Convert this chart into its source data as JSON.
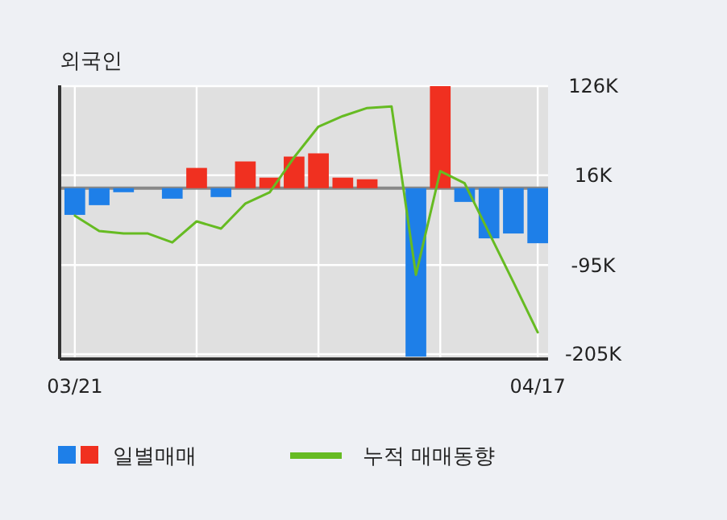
{
  "chart_data": {
    "type": "bar",
    "title": "외국인",
    "categories": [
      "03/21",
      null,
      null,
      null,
      null,
      null,
      null,
      null,
      null,
      null,
      null,
      null,
      null,
      null,
      null,
      null,
      null,
      null,
      null,
      "04/17"
    ],
    "series": [
      {
        "name": "일별매매",
        "colors": [
          "#1e7fe8",
          "#1e7fe8",
          "#1e7fe8",
          "#1e7fe8",
          "#1e7fe8",
          "#f03020",
          "#1e7fe8",
          "#f03020",
          "#f03020",
          "#f03020",
          "#f03020",
          "#f03020",
          "#f03020",
          "#f03020",
          "#1e7fe8",
          "#f03020",
          "#1e7fe8",
          "#1e7fe8",
          "#1e7fe8",
          "#1e7fe8"
        ],
        "values": [
          -33,
          -21,
          -5,
          0,
          -13,
          25,
          -11,
          33,
          13,
          39,
          43,
          13,
          11,
          0,
          -208,
          126,
          -17,
          -62,
          -56,
          -68
        ]
      },
      {
        "name": "누적 매매동향",
        "type": "line",
        "color": "#66bb22",
        "values": [
          -34,
          -53,
          -56,
          -56,
          -67,
          -41,
          -50,
          -19,
          -5,
          38,
          76,
          89,
          99,
          101,
          -107,
          21,
          6,
          -55,
          -116,
          -178
        ]
      }
    ],
    "ylim": [
      -211,
      127
    ],
    "yticks": [
      {
        "value": 126,
        "label": "126K"
      },
      {
        "value": 16,
        "label": "16K"
      },
      {
        "value": -95,
        "label": "-95K"
      },
      {
        "value": -205,
        "label": "-205K"
      }
    ],
    "ref_lines": [
      {
        "axis": "y",
        "value": 0,
        "color": "#888888"
      }
    ],
    "grid": true,
    "legend": "bottom left"
  }
}
